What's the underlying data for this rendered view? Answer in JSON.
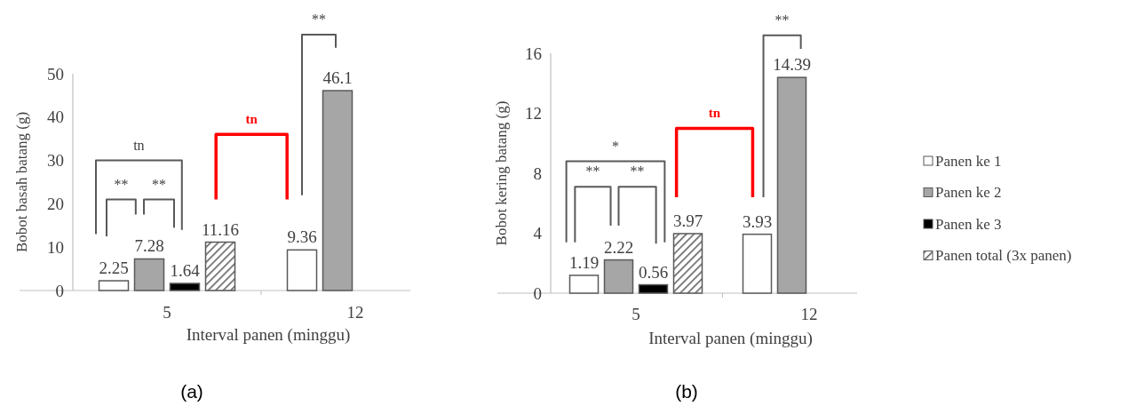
{
  "chart_data": [
    {
      "type": "bar",
      "xlabel": "Interval panen (minggu)",
      "ylabel": "Bobot basah batang (g)",
      "categories": [
        "5",
        "12"
      ],
      "ylim": [
        0,
        50
      ],
      "yticks": [
        0,
        10,
        20,
        30,
        40,
        50
      ],
      "data_labels": true,
      "legend": false,
      "series": [
        {
          "color": "#ffffff",
          "values": [
            2.25,
            9.36
          ]
        },
        {
          "color": "#a6a6a6",
          "values": [
            7.28,
            46.1
          ]
        },
        {
          "color": "#000000",
          "values": [
            1.64,
            null
          ]
        },
        {
          "color": "#595959",
          "values": [
            11.16,
            null
          ]
        }
      ],
      "annotations": [
        "**",
        "**",
        "tn",
        "tn",
        "**",
        "(a)"
      ]
    },
    {
      "type": "bar",
      "xlabel": "Interval panen (minggu)",
      "ylabel": "Bobot kering batang (g)",
      "categories": [
        "5",
        "12"
      ],
      "ylim": [
        0,
        16
      ],
      "yticks": [
        0,
        4,
        8,
        12,
        16
      ],
      "data_labels": true,
      "legend": "right",
      "series": [
        {
          "name": "Panen ke 1",
          "color": "#ffffff",
          "values": [
            1.19,
            3.93
          ]
        },
        {
          "name": "Panen ke 2",
          "color": "#a6a6a6",
          "values": [
            2.22,
            14.39
          ]
        },
        {
          "name": "Panen ke 3",
          "color": "#000000",
          "values": [
            0.56,
            null
          ]
        },
        {
          "name": "Panen total (3x panen)",
          "color": "#595959",
          "values": [
            3.97,
            null
          ]
        }
      ],
      "annotations": [
        "**",
        "**",
        "*",
        "tn",
        "**",
        "(b)"
      ]
    }
  ]
}
